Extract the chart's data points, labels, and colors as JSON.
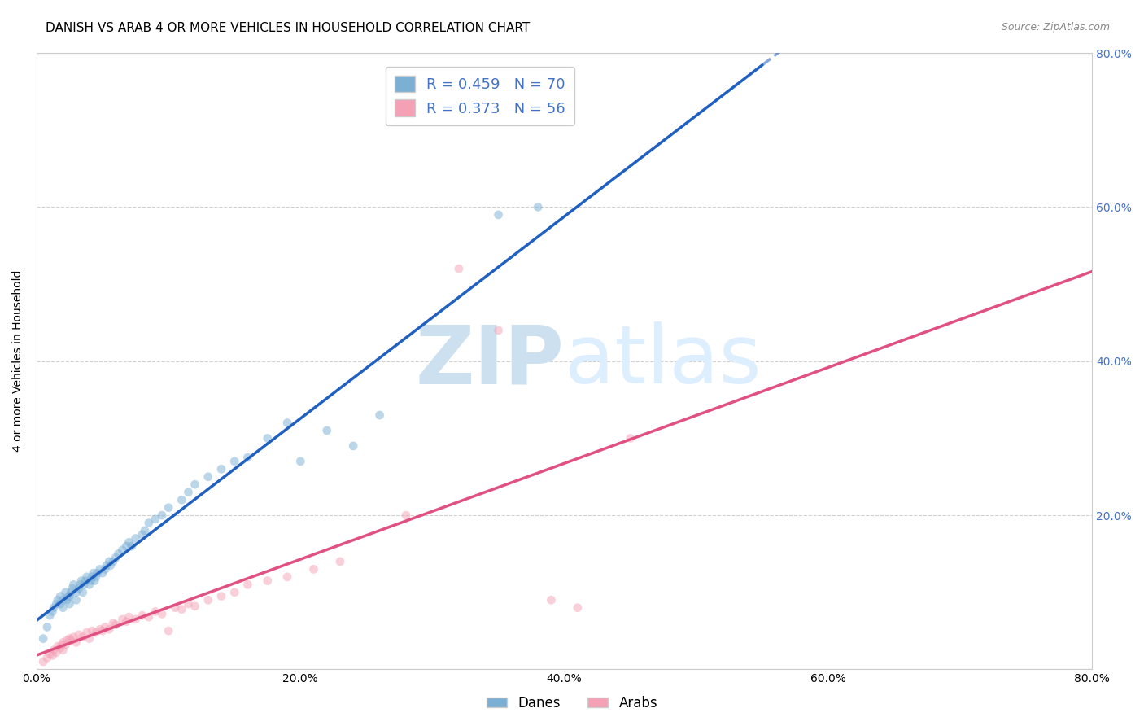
{
  "title": "DANISH VS ARAB 4 OR MORE VEHICLES IN HOUSEHOLD CORRELATION CHART",
  "source": "Source: ZipAtlas.com",
  "ylabel": "4 or more Vehicles in Household",
  "xlim": [
    0.0,
    0.8
  ],
  "ylim": [
    0.0,
    0.8
  ],
  "xtick_vals": [
    0.0,
    0.2,
    0.4,
    0.6,
    0.8
  ],
  "xtick_labels": [
    "0.0%",
    "20.0%",
    "40.0%",
    "60.0%",
    "80.0%"
  ],
  "ytick_vals": [
    0.0,
    0.2,
    0.4,
    0.6,
    0.8
  ],
  "ytick_labels_right": [
    "",
    "20.0%",
    "40.0%",
    "60.0%",
    "80.0%"
  ],
  "danes_color": "#7bafd4",
  "arabs_color": "#f4a0b5",
  "danes_line_color": "#2060c0",
  "arabs_line_color": "#e05080",
  "danes_R": "0.459",
  "danes_N": "70",
  "arabs_R": "0.373",
  "arabs_N": "56",
  "legend_label_danes": "Danes",
  "legend_label_arabs": "Arabs",
  "danes_x": [
    0.005,
    0.008,
    0.01,
    0.012,
    0.013,
    0.015,
    0.016,
    0.018,
    0.018,
    0.02,
    0.02,
    0.022,
    0.023,
    0.024,
    0.025,
    0.025,
    0.026,
    0.027,
    0.028,
    0.03,
    0.03,
    0.032,
    0.033,
    0.034,
    0.035,
    0.036,
    0.037,
    0.038,
    0.04,
    0.041,
    0.042,
    0.043,
    0.044,
    0.045,
    0.046,
    0.048,
    0.05,
    0.052,
    0.053,
    0.055,
    0.056,
    0.058,
    0.06,
    0.062,
    0.065,
    0.068,
    0.07,
    0.072,
    0.075,
    0.08,
    0.082,
    0.085,
    0.09,
    0.095,
    0.1,
    0.11,
    0.115,
    0.12,
    0.13,
    0.14,
    0.15,
    0.16,
    0.175,
    0.19,
    0.2,
    0.22,
    0.24,
    0.26,
    0.35,
    0.38
  ],
  "danes_y": [
    0.04,
    0.055,
    0.07,
    0.075,
    0.08,
    0.085,
    0.09,
    0.085,
    0.095,
    0.08,
    0.09,
    0.1,
    0.09,
    0.095,
    0.085,
    0.095,
    0.1,
    0.105,
    0.11,
    0.09,
    0.1,
    0.105,
    0.11,
    0.115,
    0.1,
    0.11,
    0.115,
    0.12,
    0.11,
    0.115,
    0.12,
    0.125,
    0.115,
    0.12,
    0.125,
    0.13,
    0.125,
    0.13,
    0.135,
    0.14,
    0.135,
    0.14,
    0.145,
    0.15,
    0.155,
    0.16,
    0.165,
    0.16,
    0.17,
    0.175,
    0.18,
    0.19,
    0.195,
    0.2,
    0.21,
    0.22,
    0.23,
    0.24,
    0.25,
    0.26,
    0.27,
    0.275,
    0.3,
    0.32,
    0.27,
    0.31,
    0.29,
    0.33,
    0.59,
    0.6
  ],
  "arabs_x": [
    0.005,
    0.008,
    0.01,
    0.012,
    0.013,
    0.015,
    0.016,
    0.018,
    0.019,
    0.02,
    0.02,
    0.022,
    0.023,
    0.025,
    0.026,
    0.028,
    0.03,
    0.032,
    0.035,
    0.038,
    0.04,
    0.042,
    0.045,
    0.048,
    0.05,
    0.052,
    0.055,
    0.058,
    0.06,
    0.065,
    0.068,
    0.07,
    0.075,
    0.08,
    0.085,
    0.09,
    0.095,
    0.1,
    0.105,
    0.11,
    0.115,
    0.12,
    0.13,
    0.14,
    0.15,
    0.16,
    0.175,
    0.19,
    0.21,
    0.23,
    0.28,
    0.32,
    0.35,
    0.39,
    0.41,
    0.45
  ],
  "arabs_y": [
    0.01,
    0.015,
    0.02,
    0.018,
    0.025,
    0.022,
    0.03,
    0.028,
    0.032,
    0.025,
    0.035,
    0.032,
    0.038,
    0.04,
    0.038,
    0.042,
    0.035,
    0.045,
    0.042,
    0.048,
    0.04,
    0.05,
    0.048,
    0.052,
    0.05,
    0.055,
    0.052,
    0.06,
    0.058,
    0.065,
    0.062,
    0.068,
    0.065,
    0.07,
    0.068,
    0.075,
    0.072,
    0.05,
    0.08,
    0.078,
    0.085,
    0.082,
    0.09,
    0.095,
    0.1,
    0.11,
    0.115,
    0.12,
    0.13,
    0.14,
    0.2,
    0.52,
    0.44,
    0.09,
    0.08,
    0.3
  ],
  "background_color": "#ffffff",
  "grid_color": "#cccccc",
  "watermark_color": "#cce0f0",
  "right_tick_color": "#4472c4",
  "marker_size": 60,
  "marker_alpha": 0.5,
  "line_width": 2.5,
  "danes_line_start_x": 0.0,
  "danes_line_end_x": 0.55,
  "danes_line_dash_end_x": 0.8,
  "arabs_line_start_x": 0.0,
  "arabs_line_end_x": 0.8
}
